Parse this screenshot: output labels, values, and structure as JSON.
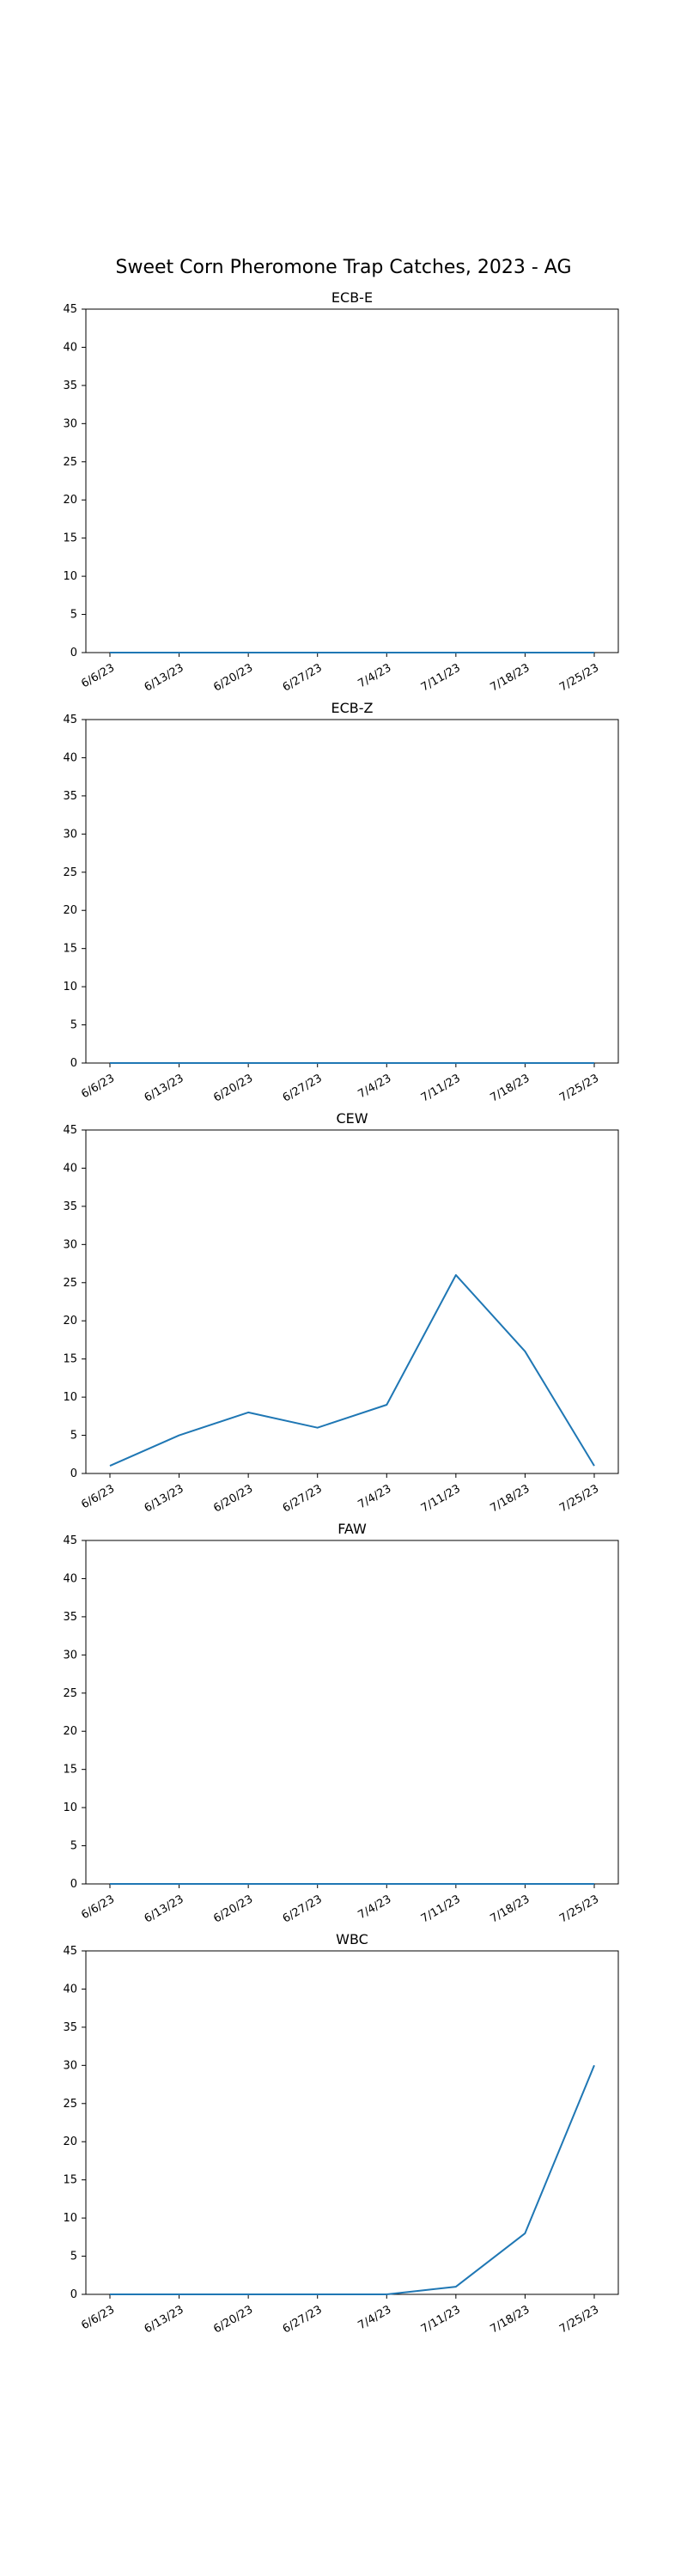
{
  "figure": {
    "title": "Sweet Corn Pheromone Trap Catches, 2023 - AG"
  },
  "chart_data": [
    {
      "type": "line",
      "title": "ECB-E",
      "xlabel": "",
      "ylabel": "",
      "categories": [
        "6/6/23",
        "6/13/23",
        "6/20/23",
        "6/27/23",
        "7/4/23",
        "7/11/23",
        "7/18/23",
        "7/25/23"
      ],
      "values": [
        0,
        0,
        0,
        0,
        0,
        0,
        0,
        0
      ],
      "ylim": [
        0,
        45
      ],
      "yticks": [
        0,
        5,
        10,
        15,
        20,
        25,
        30,
        35,
        40,
        45
      ],
      "color": "#1f77b4",
      "grid": false
    },
    {
      "type": "line",
      "title": "ECB-Z",
      "xlabel": "",
      "ylabel": "",
      "categories": [
        "6/6/23",
        "6/13/23",
        "6/20/23",
        "6/27/23",
        "7/4/23",
        "7/11/23",
        "7/18/23",
        "7/25/23"
      ],
      "values": [
        0,
        0,
        0,
        0,
        0,
        0,
        0,
        0
      ],
      "ylim": [
        0,
        45
      ],
      "yticks": [
        0,
        5,
        10,
        15,
        20,
        25,
        30,
        35,
        40,
        45
      ],
      "color": "#1f77b4",
      "grid": false
    },
    {
      "type": "line",
      "title": "CEW",
      "xlabel": "",
      "ylabel": "",
      "categories": [
        "6/6/23",
        "6/13/23",
        "6/20/23",
        "6/27/23",
        "7/4/23",
        "7/11/23",
        "7/18/23",
        "7/25/23"
      ],
      "values": [
        1,
        5,
        8,
        6,
        9,
        26,
        16,
        1
      ],
      "ylim": [
        0,
        45
      ],
      "yticks": [
        0,
        5,
        10,
        15,
        20,
        25,
        30,
        35,
        40,
        45
      ],
      "color": "#1f77b4",
      "grid": false
    },
    {
      "type": "line",
      "title": "FAW",
      "xlabel": "",
      "ylabel": "",
      "categories": [
        "6/6/23",
        "6/13/23",
        "6/20/23",
        "6/27/23",
        "7/4/23",
        "7/11/23",
        "7/18/23",
        "7/25/23"
      ],
      "values": [
        0,
        0,
        0,
        0,
        0,
        0,
        0,
        0
      ],
      "ylim": [
        0,
        45
      ],
      "yticks": [
        0,
        5,
        10,
        15,
        20,
        25,
        30,
        35,
        40,
        45
      ],
      "color": "#1f77b4",
      "grid": false
    },
    {
      "type": "line",
      "title": "WBC",
      "xlabel": "",
      "ylabel": "",
      "categories": [
        "6/6/23",
        "6/13/23",
        "6/20/23",
        "6/27/23",
        "7/4/23",
        "7/11/23",
        "7/18/23",
        "7/25/23"
      ],
      "values": [
        0,
        0,
        0,
        0,
        0,
        1,
        8,
        30
      ],
      "ylim": [
        0,
        45
      ],
      "yticks": [
        0,
        5,
        10,
        15,
        20,
        25,
        30,
        35,
        40,
        45
      ],
      "color": "#1f77b4",
      "grid": false
    }
  ]
}
